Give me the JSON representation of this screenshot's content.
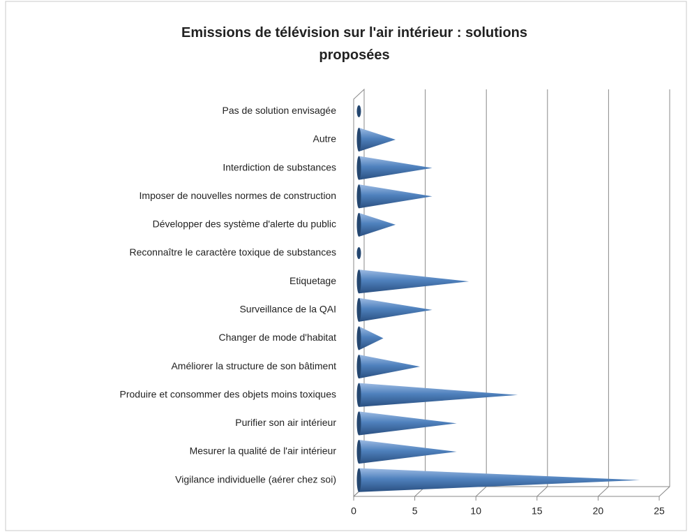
{
  "chart_data": {
    "type": "cone-bar-horizontal",
    "title": "Emissions de télévision sur l'air intérieur : solutions proposées",
    "categories": [
      "Pas de solution envisagée",
      "Autre",
      "Interdiction de substances",
      "Imposer de nouvelles normes de construction",
      "Développer des système d'alerte du public",
      "Reconnaître le caractère toxique de substances",
      "Etiquetage",
      "Surveillance de la QAI",
      "Changer de mode d'habitat",
      "Améliorer la structure de son bâtiment",
      "Produire et consommer des objets moins toxiques",
      "Purifier son air intérieur",
      "Mesurer la qualité de l'air intérieur",
      "Vigilance individuelle (aérer chez soi)"
    ],
    "values": [
      0,
      3,
      6,
      6,
      3,
      0,
      9,
      6,
      2,
      5,
      13,
      8,
      8,
      23
    ],
    "color": "#4f81bd",
    "xlim": [
      0,
      25
    ],
    "xticks": [
      0,
      5,
      10,
      15,
      20,
      25
    ],
    "grid": true
  }
}
